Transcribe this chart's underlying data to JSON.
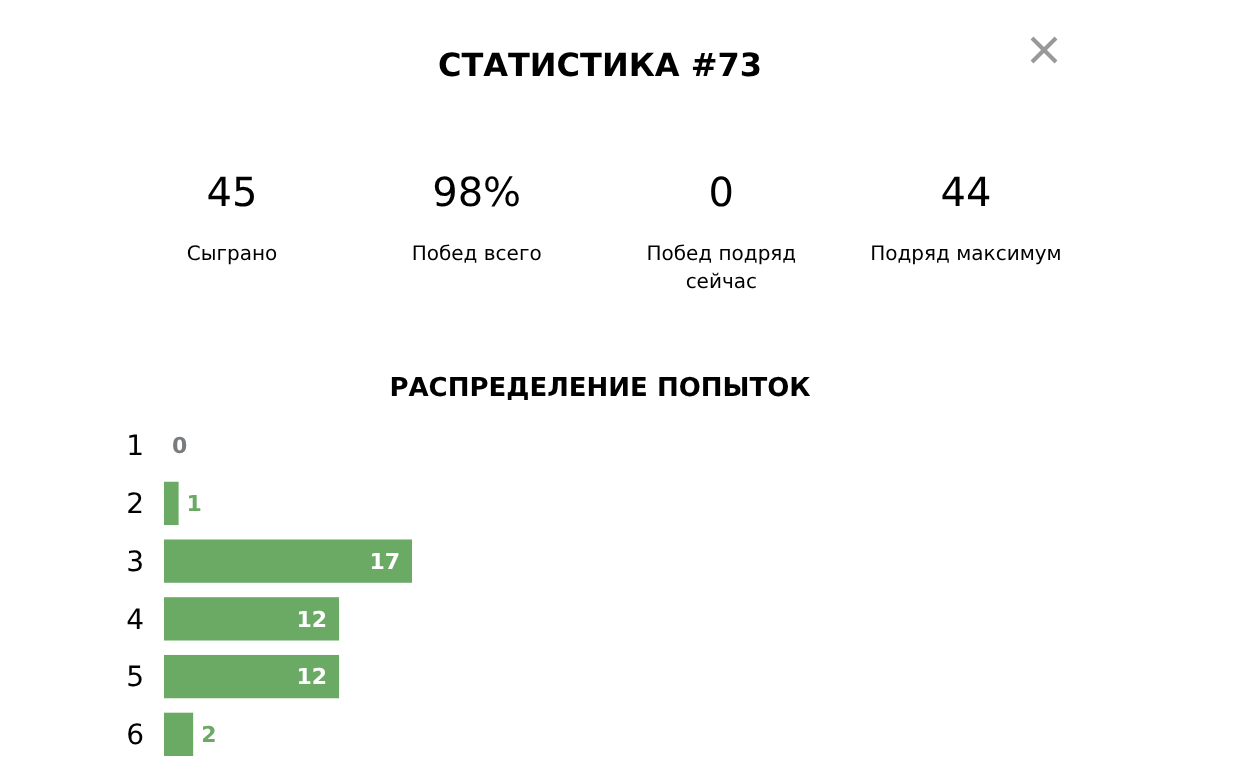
{
  "chart_data": [
    {
      "type": "other",
      "title": "СТАТИСТИКА #73",
      "categories": [
        "Сыграно",
        "Побед всего",
        "Побед подряд сейчас",
        "Подряд максимум"
      ],
      "value_labels": [
        "45",
        "98%",
        "0",
        "44"
      ]
    },
    {
      "type": "bar",
      "title": "РАСПРЕДЕЛЕНИЕ ПОПЫТОК",
      "orientation": "horizontal",
      "categories": [
        "1",
        "2",
        "3",
        "4",
        "5",
        "6"
      ],
      "values": [
        0,
        1,
        17,
        12,
        12,
        2
      ],
      "colors": [
        "#787c7e",
        "#6aaa64",
        "#6aaa64",
        "#6aaa64",
        "#6aaa64",
        "#6aaa64"
      ],
      "data_labels": true
    }
  ]
}
